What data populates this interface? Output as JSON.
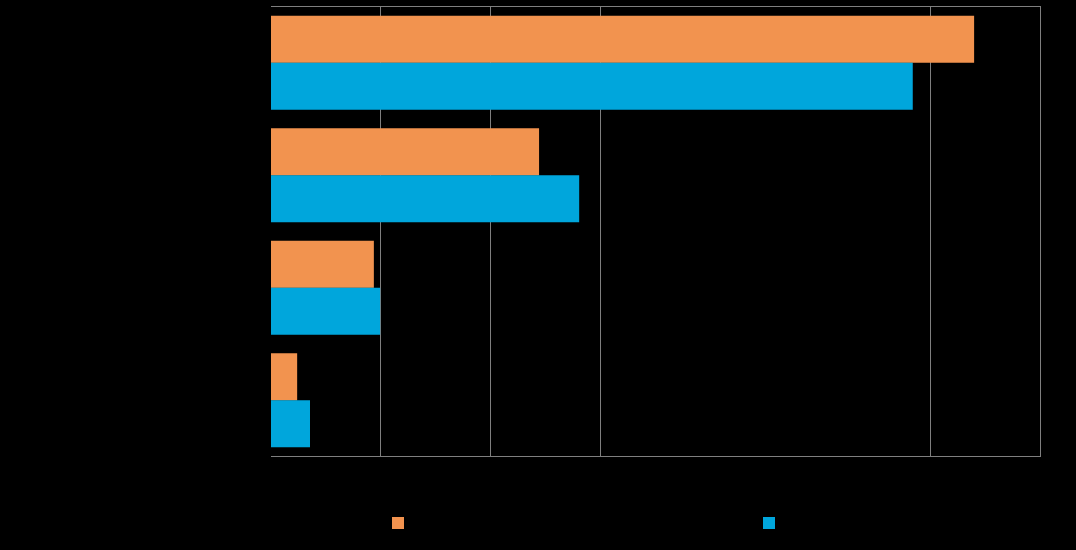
{
  "chart_data": {
    "type": "bar",
    "orientation": "horizontal",
    "categories": [
      "",
      "",
      "",
      ""
    ],
    "series": [
      {
        "color": "#F2934F",
        "values": [
          64.0,
          24.4,
          9.4,
          2.4
        ]
      },
      {
        "color": "#00A6DC",
        "values": [
          58.4,
          28.1,
          10.0,
          3.6
        ]
      }
    ],
    "xlim": [
      0,
      70
    ],
    "x_gridlines": [
      0,
      10,
      20,
      30,
      40,
      50,
      60,
      70
    ],
    "grid": true,
    "legend_position": "bottom",
    "background": "#000000",
    "gridline_color": "#7F7F7F"
  }
}
